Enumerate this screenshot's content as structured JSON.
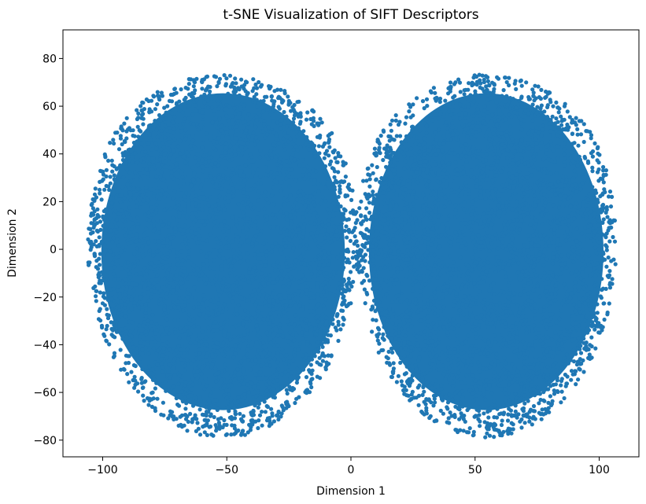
{
  "chart_data": {
    "type": "scatter",
    "title": "t-SNE Visualization of SIFT Descriptors",
    "xlabel": "Dimension 1",
    "ylabel": "Dimension 2",
    "xlim": [
      -116,
      116
    ],
    "ylim": [
      -87,
      92
    ],
    "xticks": [
      -100,
      -50,
      0,
      50,
      100
    ],
    "xtick_labels": [
      "−100",
      "−50",
      "0",
      "50",
      "100"
    ],
    "yticks": [
      -80,
      -60,
      -40,
      -20,
      0,
      20,
      40,
      60,
      80
    ],
    "ytick_labels": [
      "−80",
      "−60",
      "−40",
      "−20",
      "0",
      "20",
      "40",
      "60",
      "80"
    ],
    "grid": false,
    "point_color": "#1f77b4",
    "series": [
      {
        "clusters": [
          {
            "center": [
              -50,
              -5
            ],
            "extent_x": [
              -106,
              3
            ],
            "extent_y": [
              -79,
              83
            ]
          },
          {
            "center": [
              52,
              -5
            ],
            "extent_x": [
              2,
              107
            ],
            "extent_y": [
              -79,
              83
            ]
          }
        ]
      }
    ]
  }
}
